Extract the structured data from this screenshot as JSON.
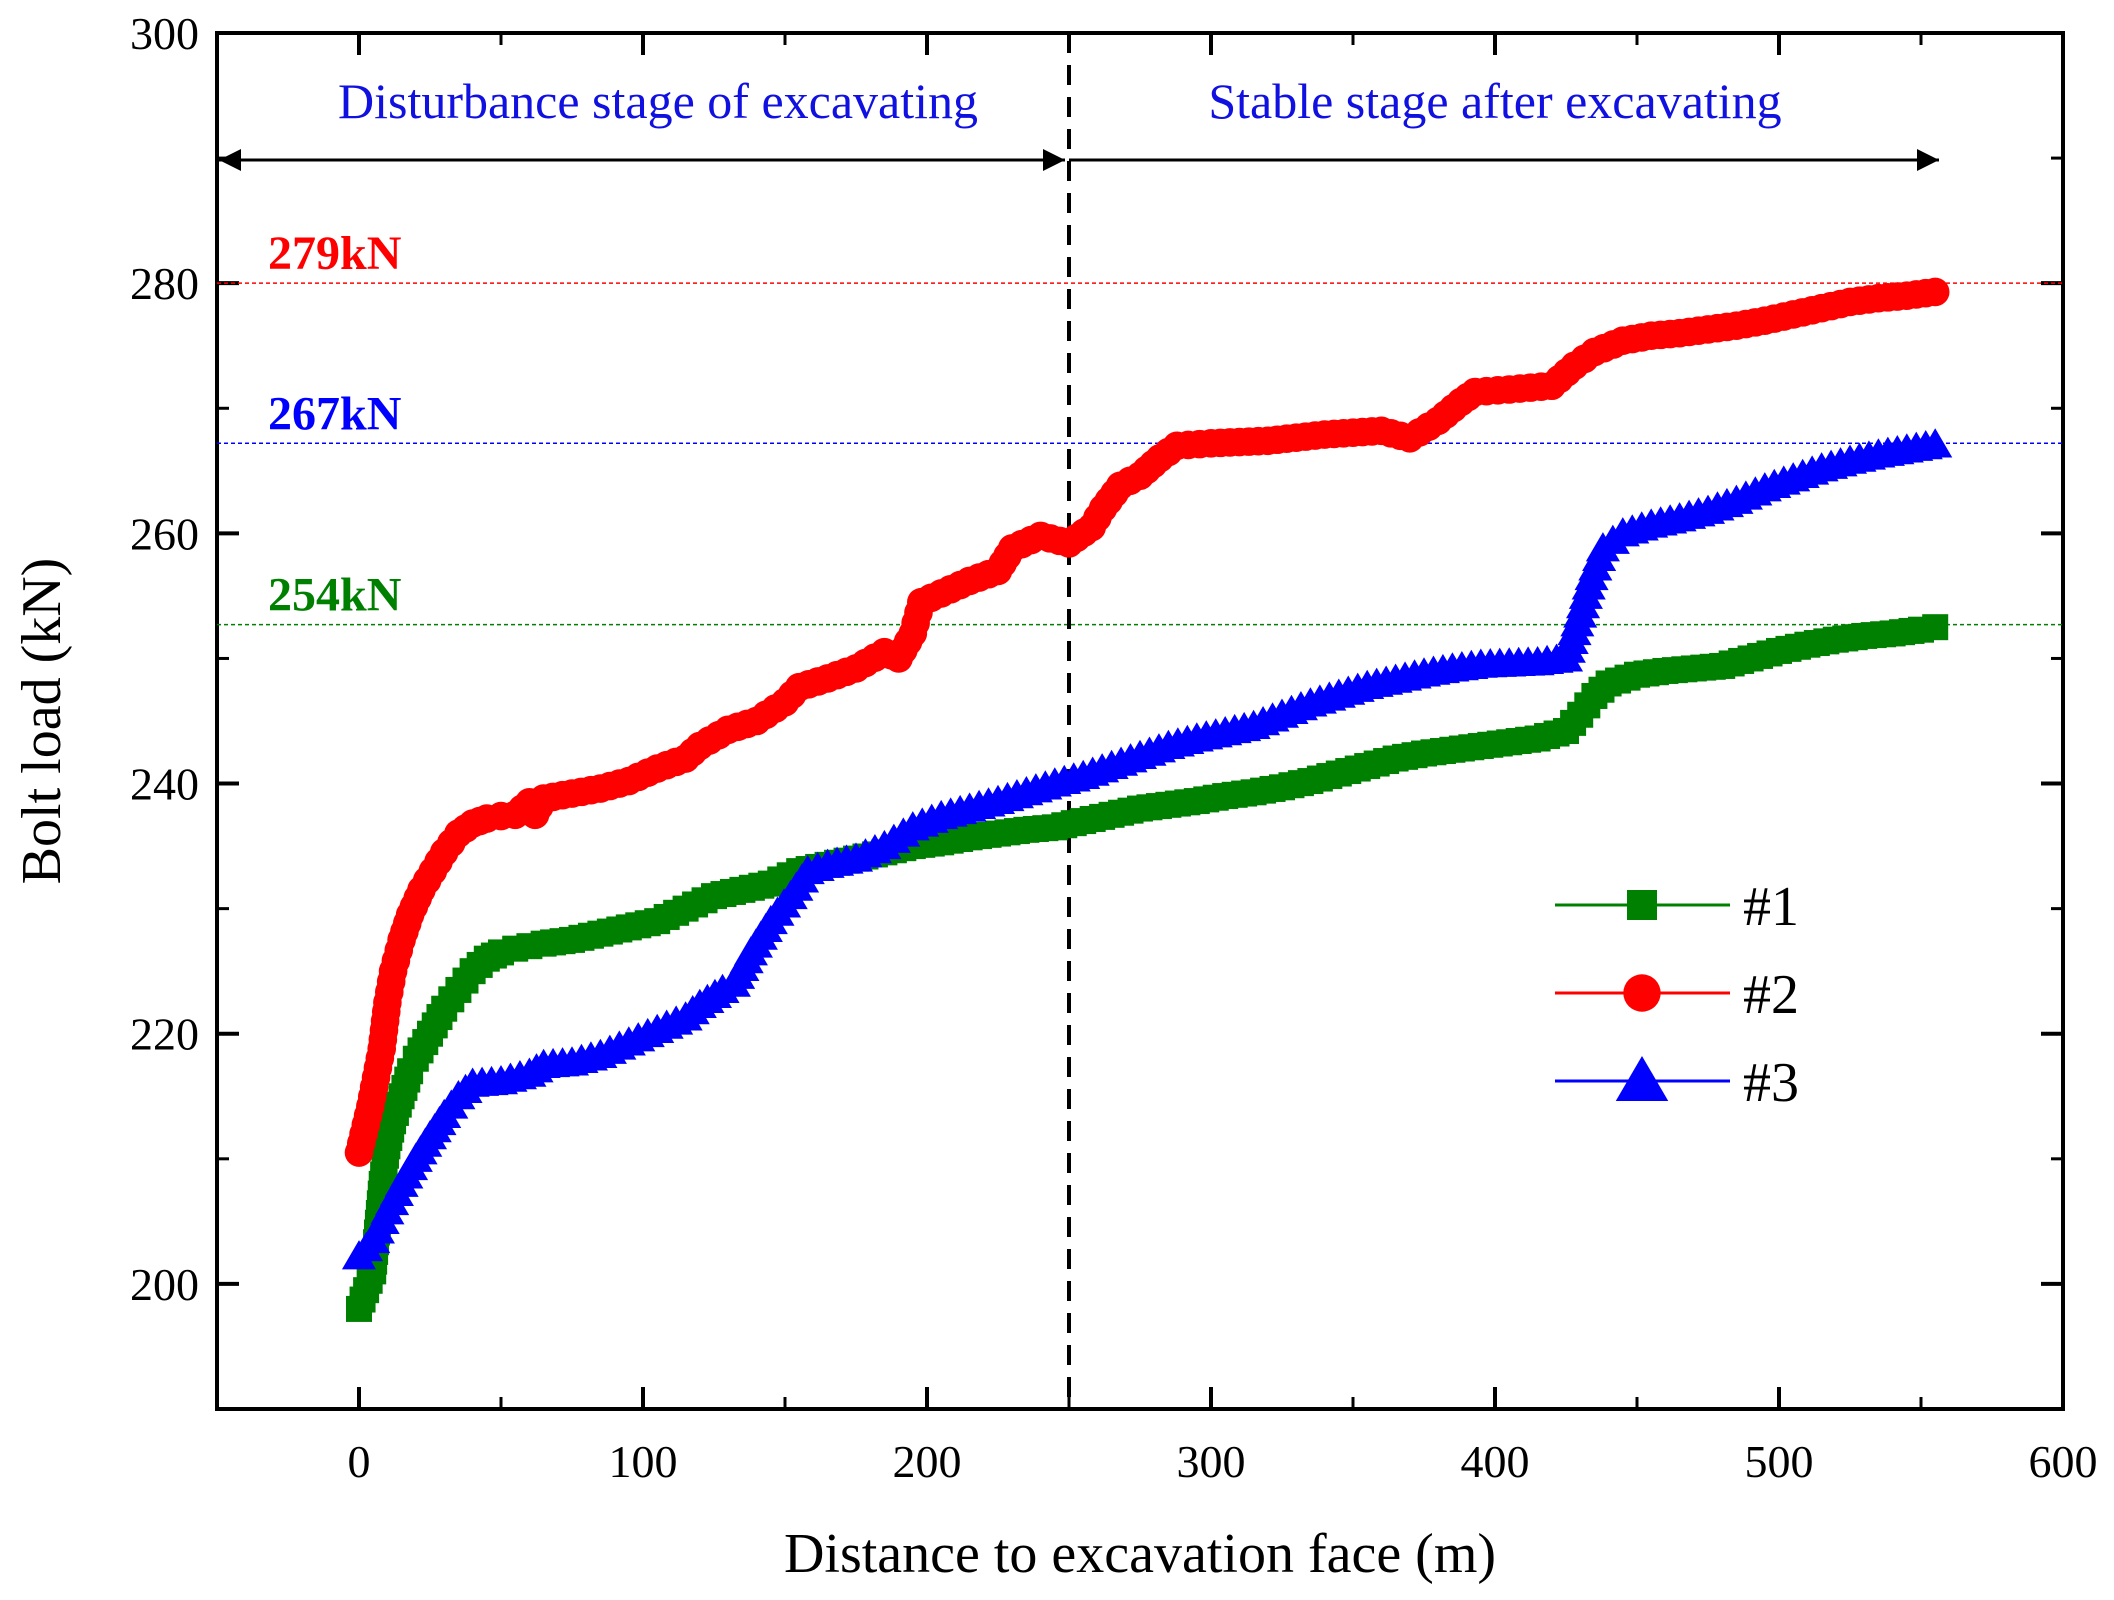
{
  "chart_data": {
    "type": "line",
    "title": "",
    "xlabel": "Distance to excavation face (m)",
    "ylabel": "Bolt load (kN)",
    "xlim": [
      -50,
      600
    ],
    "ylim": [
      190,
      300
    ],
    "xticks": [
      0,
      100,
      200,
      300,
      400,
      500,
      600
    ],
    "yticks": [
      200,
      220,
      240,
      260,
      280,
      300
    ],
    "x_tick_labels": [
      "0",
      "100",
      "200",
      "300",
      "400",
      "500",
      "600"
    ],
    "y_tick_labels": [
      "200",
      "220",
      "240",
      "260",
      "280",
      "300"
    ],
    "grid": false,
    "legend_position": "lower-right",
    "stage_divider_x": 250,
    "stages": [
      {
        "label": "Disturbance stage of excavating",
        "from": -50,
        "to": 250
      },
      {
        "label": "Stable stage after excavating",
        "from": 250,
        "to": 550
      }
    ],
    "reference_lines": [
      {
        "label": "279kN",
        "y": 280,
        "color": "#ff0000"
      },
      {
        "label": "267kN",
        "y": 267.2,
        "color": "#0000ff"
      },
      {
        "label": "254kN",
        "y": 252.7,
        "color": "#008000"
      }
    ],
    "series": [
      {
        "name": "#1",
        "marker": "square",
        "color": "#008000",
        "points": [
          [
            0,
            198
          ],
          [
            5,
            201
          ],
          [
            8,
            208
          ],
          [
            10,
            211
          ],
          [
            12,
            213
          ],
          [
            15,
            215
          ],
          [
            18,
            217
          ],
          [
            20,
            218
          ],
          [
            25,
            220
          ],
          [
            30,
            222
          ],
          [
            35,
            223.5
          ],
          [
            40,
            225
          ],
          [
            45,
            226
          ],
          [
            50,
            226.5
          ],
          [
            55,
            226.8
          ],
          [
            60,
            227
          ],
          [
            65,
            227.2
          ],
          [
            75,
            227.5
          ],
          [
            85,
            228
          ],
          [
            95,
            228.5
          ],
          [
            105,
            229
          ],
          [
            115,
            230
          ],
          [
            125,
            231
          ],
          [
            135,
            231.5
          ],
          [
            145,
            232
          ],
          [
            155,
            233
          ],
          [
            165,
            233.5
          ],
          [
            175,
            234
          ],
          [
            185,
            234.5
          ],
          [
            195,
            235
          ],
          [
            205,
            235.3
          ],
          [
            215,
            235.7
          ],
          [
            225,
            236
          ],
          [
            235,
            236.3
          ],
          [
            245,
            236.5
          ],
          [
            255,
            237
          ],
          [
            265,
            237.5
          ],
          [
            275,
            238
          ],
          [
            285,
            238.3
          ],
          [
            295,
            238.6
          ],
          [
            305,
            239
          ],
          [
            315,
            239.3
          ],
          [
            325,
            239.7
          ],
          [
            335,
            240.2
          ],
          [
            345,
            240.8
          ],
          [
            355,
            241.4
          ],
          [
            365,
            242
          ],
          [
            375,
            242.4
          ],
          [
            385,
            242.7
          ],
          [
            395,
            243
          ],
          [
            405,
            243.3
          ],
          [
            415,
            243.6
          ],
          [
            425,
            244.2
          ],
          [
            430,
            245.5
          ],
          [
            435,
            247
          ],
          [
            440,
            248
          ],
          [
            450,
            248.7
          ],
          [
            460,
            249
          ],
          [
            470,
            249.2
          ],
          [
            480,
            249.4
          ],
          [
            490,
            250
          ],
          [
            500,
            250.6
          ],
          [
            510,
            251.1
          ],
          [
            520,
            251.5
          ],
          [
            530,
            251.8
          ],
          [
            540,
            252
          ],
          [
            550,
            252.3
          ],
          [
            555,
            252.5
          ]
        ]
      },
      {
        "name": "#2",
        "marker": "circle",
        "color": "#ff0000",
        "points": [
          [
            0,
            210.5
          ],
          [
            4,
            214.2
          ],
          [
            8,
            218.8
          ],
          [
            10,
            222.5
          ],
          [
            12,
            225
          ],
          [
            15,
            227.5
          ],
          [
            18,
            229.5
          ],
          [
            22,
            231.5
          ],
          [
            26,
            233
          ],
          [
            30,
            234.5
          ],
          [
            35,
            236
          ],
          [
            40,
            236.8
          ],
          [
            45,
            237.2
          ],
          [
            50,
            237.4
          ],
          [
            55,
            237.5
          ],
          [
            60,
            238.5
          ],
          [
            62,
            237.5
          ],
          [
            65,
            238.8
          ],
          [
            75,
            239.2
          ],
          [
            85,
            239.6
          ],
          [
            95,
            240.2
          ],
          [
            105,
            241.2
          ],
          [
            115,
            242
          ],
          [
            120,
            243
          ],
          [
            130,
            244.3
          ],
          [
            140,
            245
          ],
          [
            150,
            246.5
          ],
          [
            155,
            247.7
          ],
          [
            165,
            248.4
          ],
          [
            175,
            249.2
          ],
          [
            185,
            250.5
          ],
          [
            190,
            250
          ],
          [
            195,
            252
          ],
          [
            198,
            254.5
          ],
          [
            205,
            255.2
          ],
          [
            215,
            256.2
          ],
          [
            225,
            257
          ],
          [
            230,
            258.8
          ],
          [
            240,
            259.8
          ],
          [
            250,
            259.2
          ],
          [
            258,
            260.5
          ],
          [
            262,
            262
          ],
          [
            268,
            263.8
          ],
          [
            275,
            264.6
          ],
          [
            282,
            266
          ],
          [
            288,
            267
          ],
          [
            300,
            267.2
          ],
          [
            320,
            267.4
          ],
          [
            340,
            267.9
          ],
          [
            360,
            268.2
          ],
          [
            370,
            267.6
          ],
          [
            380,
            269
          ],
          [
            388,
            270.5
          ],
          [
            393,
            271.3
          ],
          [
            405,
            271.5
          ],
          [
            420,
            271.8
          ],
          [
            428,
            273.4
          ],
          [
            435,
            274.5
          ],
          [
            445,
            275.4
          ],
          [
            455,
            275.8
          ],
          [
            465,
            276
          ],
          [
            475,
            276.3
          ],
          [
            485,
            276.6
          ],
          [
            495,
            277
          ],
          [
            505,
            277.5
          ],
          [
            515,
            278
          ],
          [
            525,
            278.5
          ],
          [
            535,
            278.8
          ],
          [
            545,
            279
          ],
          [
            555,
            279.3
          ]
        ]
      },
      {
        "name": "#3",
        "marker": "triangle",
        "color": "#0000ff",
        "points": [
          [
            0,
            202.2
          ],
          [
            5,
            203.5
          ],
          [
            10,
            205.8
          ],
          [
            15,
            208
          ],
          [
            20,
            210
          ],
          [
            25,
            211.8
          ],
          [
            30,
            213.5
          ],
          [
            35,
            215
          ],
          [
            40,
            216
          ],
          [
            50,
            216.2
          ],
          [
            60,
            216.8
          ],
          [
            65,
            217.5
          ],
          [
            75,
            217.7
          ],
          [
            85,
            218.3
          ],
          [
            95,
            219.3
          ],
          [
            105,
            220.3
          ],
          [
            115,
            221.3
          ],
          [
            120,
            222.3
          ],
          [
            128,
            223.5
          ],
          [
            132,
            224
          ],
          [
            138,
            226.5
          ],
          [
            145,
            229
          ],
          [
            152,
            231
          ],
          [
            158,
            233
          ],
          [
            165,
            233.5
          ],
          [
            175,
            234
          ],
          [
            185,
            235
          ],
          [
            195,
            236.5
          ],
          [
            205,
            237.4
          ],
          [
            215,
            238
          ],
          [
            225,
            238.6
          ],
          [
            235,
            239.3
          ],
          [
            245,
            240
          ],
          [
            255,
            240.6
          ],
          [
            265,
            241.4
          ],
          [
            275,
            242.2
          ],
          [
            285,
            243
          ],
          [
            295,
            243.6
          ],
          [
            305,
            244.1
          ],
          [
            315,
            244.6
          ],
          [
            325,
            245.5
          ],
          [
            335,
            246.4
          ],
          [
            345,
            247.1
          ],
          [
            355,
            247.8
          ],
          [
            365,
            248.3
          ],
          [
            375,
            248.8
          ],
          [
            385,
            249.2
          ],
          [
            395,
            249.5
          ],
          [
            405,
            249.6
          ],
          [
            415,
            249.7
          ],
          [
            425,
            250
          ],
          [
            430,
            253.5
          ],
          [
            434,
            256.5
          ],
          [
            438,
            258.8
          ],
          [
            445,
            260
          ],
          [
            455,
            260.7
          ],
          [
            465,
            261.2
          ],
          [
            475,
            261.8
          ],
          [
            485,
            262.6
          ],
          [
            495,
            263.6
          ],
          [
            505,
            264.4
          ],
          [
            515,
            265.2
          ],
          [
            525,
            265.8
          ],
          [
            535,
            266.3
          ],
          [
            545,
            266.7
          ],
          [
            555,
            267.1
          ]
        ]
      }
    ]
  }
}
